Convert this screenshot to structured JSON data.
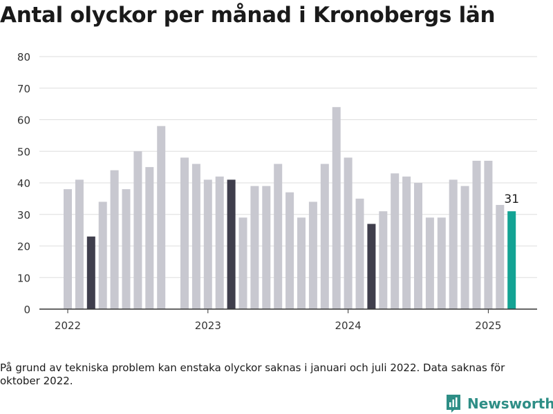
{
  "title": "Antal olyckor per månad i Kronobergs län",
  "footnote": "På grund av tekniska problem kan enstaka olyckor saknas i januari och juli 2022. Data saknas för oktober 2022.",
  "brand": {
    "name": "Newsworthy",
    "icon": "newsworthy-logo-icon"
  },
  "colors": {
    "default": "#c8c8d0",
    "highlight": "#3f3e4c",
    "latest": "#13a394",
    "grid": "#dedede",
    "axis": "#333333"
  },
  "chart_data": {
    "type": "bar",
    "title": "Antal olyckor per månad i Kronobergs län",
    "xlabel": "",
    "ylabel": "",
    "ylim": [
      0,
      80
    ],
    "yticks": [
      "0",
      "10",
      "20",
      "30",
      "40",
      "50",
      "60",
      "70",
      "80"
    ],
    "xticks": [
      "2022",
      "2023",
      "2024",
      "2025"
    ],
    "grid": true,
    "categories": [
      "2022-01",
      "2022-02",
      "2022-03",
      "2022-04",
      "2022-05",
      "2022-06",
      "2022-07",
      "2022-08",
      "2022-09",
      "2022-10",
      "2022-11",
      "2022-12",
      "2023-01",
      "2023-02",
      "2023-03",
      "2023-04",
      "2023-05",
      "2023-06",
      "2023-07",
      "2023-08",
      "2023-09",
      "2023-10",
      "2023-11",
      "2023-12",
      "2024-01",
      "2024-02",
      "2024-03",
      "2024-04",
      "2024-05",
      "2024-06",
      "2024-07",
      "2024-08",
      "2024-09",
      "2024-10",
      "2024-11",
      "2024-12",
      "2025-01",
      "2025-02",
      "2025-03"
    ],
    "values": [
      38,
      41,
      23,
      34,
      44,
      38,
      50,
      45,
      58,
      null,
      48,
      46,
      41,
      42,
      41,
      29,
      39,
      39,
      46,
      37,
      29,
      34,
      46,
      64,
      48,
      35,
      27,
      31,
      43,
      42,
      40,
      29,
      29,
      41,
      39,
      47,
      47,
      33,
      31
    ],
    "highlighted": [
      "2022-03",
      "2023-03",
      "2024-03"
    ],
    "latest": "2025-03",
    "latest_label": "31"
  }
}
